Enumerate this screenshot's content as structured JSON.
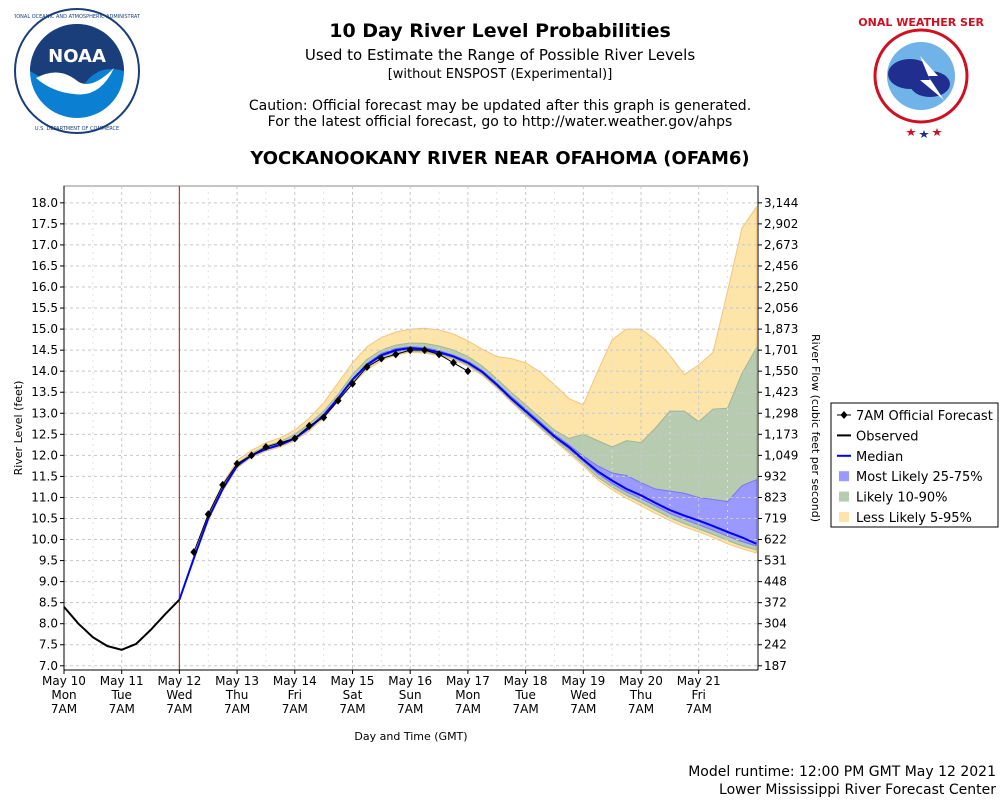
{
  "header": {
    "title": "10 Day River Level Probabilities",
    "subtitle": "Used to Estimate the Range of Possible River Levels",
    "subtitle2": "[without ENSPOST (Experimental)]",
    "caution1": "Caution: Official forecast may be updated after this graph is generated.",
    "caution2": "For the latest official forecast, go to http://water.weather.gov/ahps",
    "station": "YOCKANOOKANY RIVER NEAR OFAHOMA (OFAM6)"
  },
  "logos": {
    "noaa_text": "NOAA",
    "noaa_ring": "NATIONAL OCEANIC AND ATMOSPHERIC ADMINISTRATION",
    "noaa_ring_bottom": "U.S. DEPARTMENT OF COMMERCE",
    "nws_ring": "NATIONAL WEATHER SERVICE"
  },
  "footer": {
    "runtime": "Model runtime: 12:00 PM GMT May 12 2021",
    "center": "Lower Mississippi River Forecast Center"
  },
  "colors": {
    "observed": "#000000",
    "median": "#0000ff",
    "band_25_75": "#9999ff",
    "band_10_90": "#b7cbb1",
    "band_5_95": "#fde4a8",
    "band_5_95_edge": "#f5c57a",
    "now_line": "#cc3333",
    "grid": "#c8c8c8"
  },
  "chart_data": {
    "type": "line",
    "title": "YOCKANOOKANY RIVER NEAR OFAHOMA (OFAM6)",
    "xlabel": "Day and Time (GMT)",
    "ylabel": "River Level (feet)",
    "ylabel_right": "River Flow (cubic feet per second)",
    "ylim": [
      6.9,
      18.4
    ],
    "xlim_days": [
      0,
      12
    ],
    "x_ticks": [
      {
        "d": 0,
        "l1": "May 10",
        "l2": "Mon",
        "l3": "7AM"
      },
      {
        "d": 1,
        "l1": "May 11",
        "l2": "Tue",
        "l3": "7AM"
      },
      {
        "d": 2,
        "l1": "May 12",
        "l2": "Wed",
        "l3": "7AM"
      },
      {
        "d": 3,
        "l1": "May 13",
        "l2": "Thu",
        "l3": "7AM"
      },
      {
        "d": 4,
        "l1": "May 14",
        "l2": "Fri",
        "l3": "7AM"
      },
      {
        "d": 5,
        "l1": "May 15",
        "l2": "Sat",
        "l3": "7AM"
      },
      {
        "d": 6,
        "l1": "May 16",
        "l2": "Sun",
        "l3": "7AM"
      },
      {
        "d": 7,
        "l1": "May 17",
        "l2": "Mon",
        "l3": "7AM"
      },
      {
        "d": 8,
        "l1": "May 18",
        "l2": "Tue",
        "l3": "7AM"
      },
      {
        "d": 9,
        "l1": "May 19",
        "l2": "Wed",
        "l3": "7AM"
      },
      {
        "d": 10,
        "l1": "May 20",
        "l2": "Thu",
        "l3": "7AM"
      },
      {
        "d": 11,
        "l1": "May 21",
        "l2": "Fri",
        "l3": "7AM"
      }
    ],
    "left_ticks": [
      "7.0",
      "7.5",
      "8.0",
      "8.5",
      "9.0",
      "9.5",
      "10.0",
      "10.5",
      "11.0",
      "11.5",
      "12.0",
      "12.5",
      "13.0",
      "13.5",
      "14.0",
      "14.5",
      "15.0",
      "15.5",
      "16.0",
      "16.5",
      "17.0",
      "17.5",
      "18.0"
    ],
    "right_ticks": [
      "187",
      "242",
      "304",
      "372",
      "448",
      "531",
      "622",
      "719",
      "823",
      "932",
      "1,049",
      "1,173",
      "1,298",
      "1,423",
      "1,550",
      "1,701",
      "1,873",
      "2,056",
      "2,250",
      "2,456",
      "2,673",
      "2,902",
      "3,144"
    ],
    "now_day": 2.0,
    "legend": [
      {
        "key": "official",
        "label": "7AM Official Forecast"
      },
      {
        "key": "observed",
        "label": "Observed"
      },
      {
        "key": "median",
        "label": "Median"
      },
      {
        "key": "b25",
        "label": "Most Likely 25-75%"
      },
      {
        "key": "b10",
        "label": "Likely 10-90%"
      },
      {
        "key": "b5",
        "label": "Less Likely 5-95%"
      }
    ],
    "observed": [
      [
        0,
        8.4
      ],
      [
        0.25,
        8.0
      ],
      [
        0.5,
        7.68
      ],
      [
        0.75,
        7.47
      ],
      [
        1.0,
        7.38
      ],
      [
        1.25,
        7.52
      ],
      [
        1.5,
        7.85
      ],
      [
        1.75,
        8.22
      ],
      [
        2.0,
        8.57
      ]
    ],
    "official_forecast": [
      [
        2.25,
        9.7
      ],
      [
        2.5,
        10.6
      ],
      [
        2.75,
        11.3
      ],
      [
        3.0,
        11.8
      ],
      [
        3.25,
        12.0
      ],
      [
        3.5,
        12.2
      ],
      [
        3.75,
        12.3
      ],
      [
        4.0,
        12.4
      ],
      [
        4.25,
        12.7
      ],
      [
        4.5,
        12.9
      ],
      [
        4.75,
        13.3
      ],
      [
        5.0,
        13.7
      ],
      [
        5.25,
        14.1
      ],
      [
        5.5,
        14.3
      ],
      [
        5.75,
        14.4
      ],
      [
        6.0,
        14.5
      ],
      [
        6.25,
        14.5
      ],
      [
        6.5,
        14.4
      ],
      [
        6.75,
        14.2
      ],
      [
        7.0,
        14.0
      ]
    ],
    "series_x": [
      2.0,
      2.25,
      2.5,
      2.75,
      3.0,
      3.25,
      3.5,
      3.75,
      4.0,
      4.25,
      4.5,
      4.75,
      5.0,
      5.25,
      5.5,
      5.75,
      6.0,
      6.25,
      6.5,
      6.75,
      7.0,
      7.25,
      7.5,
      7.75,
      8.0,
      8.25,
      8.5,
      8.75,
      9.0,
      9.25,
      9.5,
      9.75,
      10.0,
      10.25,
      10.5,
      10.75,
      11.0,
      11.25,
      11.5,
      11.75,
      12.0
    ],
    "median": [
      8.57,
      9.55,
      10.5,
      11.2,
      11.75,
      12.0,
      12.15,
      12.25,
      12.4,
      12.65,
      12.95,
      13.35,
      13.8,
      14.15,
      14.38,
      14.5,
      14.55,
      14.52,
      14.45,
      14.35,
      14.2,
      13.98,
      13.68,
      13.35,
      13.05,
      12.75,
      12.45,
      12.2,
      11.9,
      11.62,
      11.4,
      11.2,
      11.05,
      10.87,
      10.7,
      10.57,
      10.45,
      10.32,
      10.18,
      10.05,
      9.9
    ],
    "band_25_75": {
      "low": [
        8.57,
        9.55,
        10.5,
        11.2,
        11.75,
        12.0,
        12.15,
        12.25,
        12.4,
        12.65,
        12.95,
        13.35,
        13.78,
        14.12,
        14.35,
        14.47,
        14.52,
        14.5,
        14.43,
        14.33,
        14.18,
        13.96,
        13.66,
        13.33,
        13.02,
        12.72,
        12.42,
        12.16,
        11.86,
        11.57,
        11.33,
        11.13,
        10.97,
        10.8,
        10.62,
        10.48,
        10.35,
        10.22,
        10.08,
        9.95,
        9.85
      ],
      "high": [
        8.57,
        9.56,
        10.52,
        11.22,
        11.77,
        12.02,
        12.17,
        12.28,
        12.43,
        12.68,
        12.98,
        13.38,
        13.82,
        14.18,
        14.42,
        14.54,
        14.58,
        14.56,
        14.49,
        14.38,
        14.24,
        14.02,
        13.72,
        13.4,
        13.1,
        12.8,
        12.5,
        12.25,
        11.98,
        11.75,
        11.58,
        11.52,
        11.35,
        11.2,
        11.15,
        11.1,
        11.0,
        10.95,
        10.9,
        11.28,
        11.42
      ]
    },
    "band_10_90": {
      "low": [
        8.57,
        9.54,
        10.48,
        11.18,
        11.73,
        11.98,
        12.13,
        12.23,
        12.38,
        12.62,
        12.92,
        13.32,
        13.75,
        14.08,
        14.3,
        14.42,
        14.48,
        14.46,
        14.4,
        14.3,
        14.15,
        13.93,
        13.63,
        13.3,
        12.98,
        12.68,
        12.38,
        12.1,
        11.8,
        11.48,
        11.25,
        11.05,
        10.88,
        10.7,
        10.52,
        10.38,
        10.25,
        10.12,
        9.98,
        9.85,
        9.75
      ],
      "high": [
        8.57,
        9.58,
        10.55,
        11.25,
        11.8,
        12.05,
        12.22,
        12.33,
        12.5,
        12.75,
        13.05,
        13.45,
        13.92,
        14.28,
        14.5,
        14.62,
        14.67,
        14.66,
        14.6,
        14.5,
        14.35,
        14.12,
        13.82,
        13.5,
        13.2,
        12.9,
        12.6,
        12.4,
        12.5,
        12.35,
        12.2,
        12.35,
        12.3,
        12.65,
        13.05,
        13.05,
        12.8,
        13.1,
        13.12,
        13.95,
        14.55
      ]
    },
    "band_5_95": {
      "low": [
        8.57,
        9.53,
        10.45,
        11.15,
        11.7,
        11.95,
        12.1,
        12.2,
        12.35,
        12.58,
        12.88,
        13.28,
        13.7,
        14.03,
        14.25,
        14.38,
        14.45,
        14.43,
        14.37,
        14.27,
        14.12,
        13.9,
        13.6,
        13.27,
        12.95,
        12.65,
        12.35,
        12.05,
        11.75,
        11.42,
        11.18,
        10.98,
        10.8,
        10.62,
        10.45,
        10.3,
        10.18,
        10.05,
        9.9,
        9.78,
        9.68
      ],
      "high": [
        8.57,
        9.62,
        10.62,
        11.32,
        11.88,
        12.12,
        12.3,
        12.42,
        12.6,
        12.88,
        13.25,
        13.72,
        14.2,
        14.58,
        14.8,
        14.93,
        15.0,
        15.02,
        14.98,
        14.88,
        14.72,
        14.52,
        14.35,
        14.3,
        14.2,
        13.98,
        13.68,
        13.35,
        13.2,
        14.0,
        14.75,
        15.0,
        15.0,
        14.75,
        14.38,
        13.92,
        14.15,
        14.45,
        15.9,
        17.4,
        17.9
      ]
    }
  }
}
